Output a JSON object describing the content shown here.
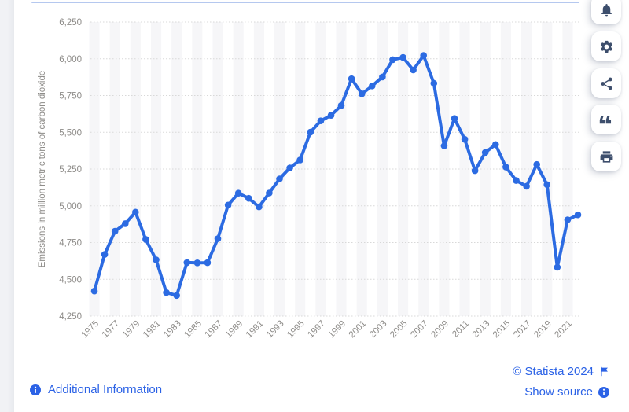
{
  "chart_data": {
    "type": "line",
    "title": "",
    "xlabel": "",
    "ylabel": "Emissions in million metric tons of carbon dioxide",
    "legend": "none",
    "grid": "horizontal-dotted",
    "ylim": [
      4250,
      6250
    ],
    "y_step": 250,
    "y_tick_labels": [
      "4,250",
      "4,500",
      "4,750",
      "5,000",
      "5,250",
      "5,500",
      "5,750",
      "6,000",
      "6,250"
    ],
    "x_tick_labels": [
      "1975",
      "1977",
      "1979",
      "1981",
      "1983",
      "1985",
      "1987",
      "1989",
      "1991",
      "1993",
      "1995",
      "1997",
      "1999",
      "2001",
      "2003",
      "2005",
      "2007",
      "2009",
      "2011",
      "2013",
      "2015",
      "2017",
      "2019",
      "2021"
    ],
    "years": [
      1975,
      1976,
      1977,
      1978,
      1979,
      1980,
      1981,
      1982,
      1983,
      1984,
      1985,
      1986,
      1987,
      1988,
      1989,
      1990,
      1991,
      1992,
      1993,
      1994,
      1995,
      1996,
      1997,
      1998,
      1999,
      2000,
      2001,
      2002,
      2003,
      2004,
      2005,
      2006,
      2007,
      2008,
      2009,
      2010,
      2011,
      2012,
      2013,
      2014,
      2015,
      2016,
      2017,
      2018,
      2019,
      2020,
      2021,
      2022
    ],
    "values": [
      4420,
      4669,
      4827,
      4879,
      4957,
      4772,
      4633,
      4410,
      4390,
      4614,
      4612,
      4613,
      4776,
      5005,
      5086,
      5051,
      4993,
      5087,
      5183,
      5258,
      5312,
      5501,
      5578,
      5615,
      5682,
      5864,
      5762,
      5815,
      5876,
      5994,
      6009,
      5924,
      6022,
      5833,
      5408,
      5594,
      5452,
      5239,
      5363,
      5417,
      5264,
      5172,
      5133,
      5281,
      5144,
      4582,
      4905,
      4939
    ],
    "line_color": "#2c6be2",
    "band_color": "#f6f6f8",
    "gridline_color": "#d8d8d8",
    "axis_text_color": "#8e8c89"
  },
  "sidebar": {
    "icons": [
      "bell",
      "gear",
      "share",
      "quote",
      "printer"
    ]
  },
  "footer": {
    "additional_information_label": "Additional Information",
    "copyright_label": "© Statista 2024",
    "show_source_label": "Show source"
  },
  "colors": {
    "link_blue": "#2b62e6",
    "icon_navy": "#3d4e6c",
    "accent_line": "#b5c8ef"
  }
}
